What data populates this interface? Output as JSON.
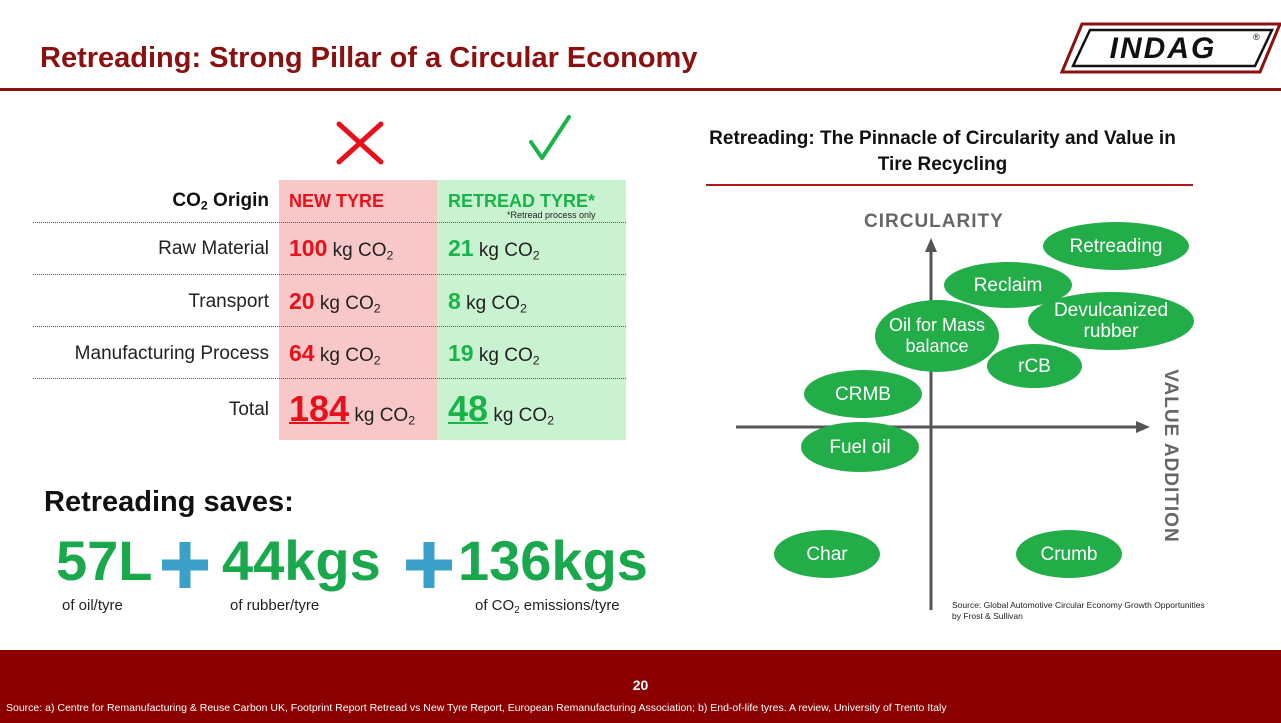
{
  "slide": {
    "title": "Retreading: Strong Pillar of a Circular Economy",
    "logo_text": "INDAG",
    "logo_mark": "®",
    "page_number": "20",
    "footer_source": "Source: a) Centre for Remanufacturing & Reuse Carbon UK, Footprint Report Retread vs New Tyre Report, European Remanufacturing Association;  b) End-of-life tyres. A review, University of Trento Italy"
  },
  "table": {
    "origin_label_main": "CO",
    "origin_label_sub": "2",
    "origin_label_tail": " Origin",
    "new_header": "NEW TYRE",
    "retread_header": "RETREAD TYRE*",
    "retread_note": "*Retread process only",
    "unit_main": "kg CO",
    "unit_sub": "2",
    "rows": [
      {
        "label": "Raw Material",
        "new": "100",
        "retread": "21"
      },
      {
        "label": "Transport",
        "new": "20",
        "retread": "8"
      },
      {
        "label": "Manufacturing Process",
        "new": "64",
        "retread": "19"
      }
    ],
    "total": {
      "label": "Total",
      "new": "184",
      "retread": "48"
    }
  },
  "savings": {
    "title": "Retreading saves:",
    "items": [
      {
        "value": "57L",
        "caption": "of oil/tyre"
      },
      {
        "value": "44kgs",
        "caption": "of rubber/tyre"
      },
      {
        "value": "136kgs",
        "caption_main": "of CO",
        "caption_sub": "2",
        "caption_tail": " emissions/tyre"
      }
    ]
  },
  "chart": {
    "title": "Retreading: The Pinnacle of Circularity and Value in Tire Recycling",
    "y_axis": "CIRCULARITY",
    "x_axis": "VALUE ADDITION",
    "bubbles": [
      "Retreading",
      "Reclaim",
      "Devulcanized rubber",
      "Oil for Mass balance",
      "rCB",
      "CRMB",
      "Fuel oil",
      "Char",
      "Crumb"
    ],
    "source_line1": "Source: Global Automotive Circular Economy Growth Opportunities",
    "source_line2": "by Frost & Sullivan"
  },
  "colors": {
    "brand": "#8b1010",
    "footer": "#8b0000",
    "new_fill": "#f8c8c8",
    "retread_fill": "#c9f3d0",
    "red": "#e8101a",
    "green": "#19b34a",
    "bubble": "#22ad48",
    "plus": "#3aa0c9"
  },
  "icons": [
    "cross-icon",
    "check-icon",
    "plus-icon"
  ]
}
